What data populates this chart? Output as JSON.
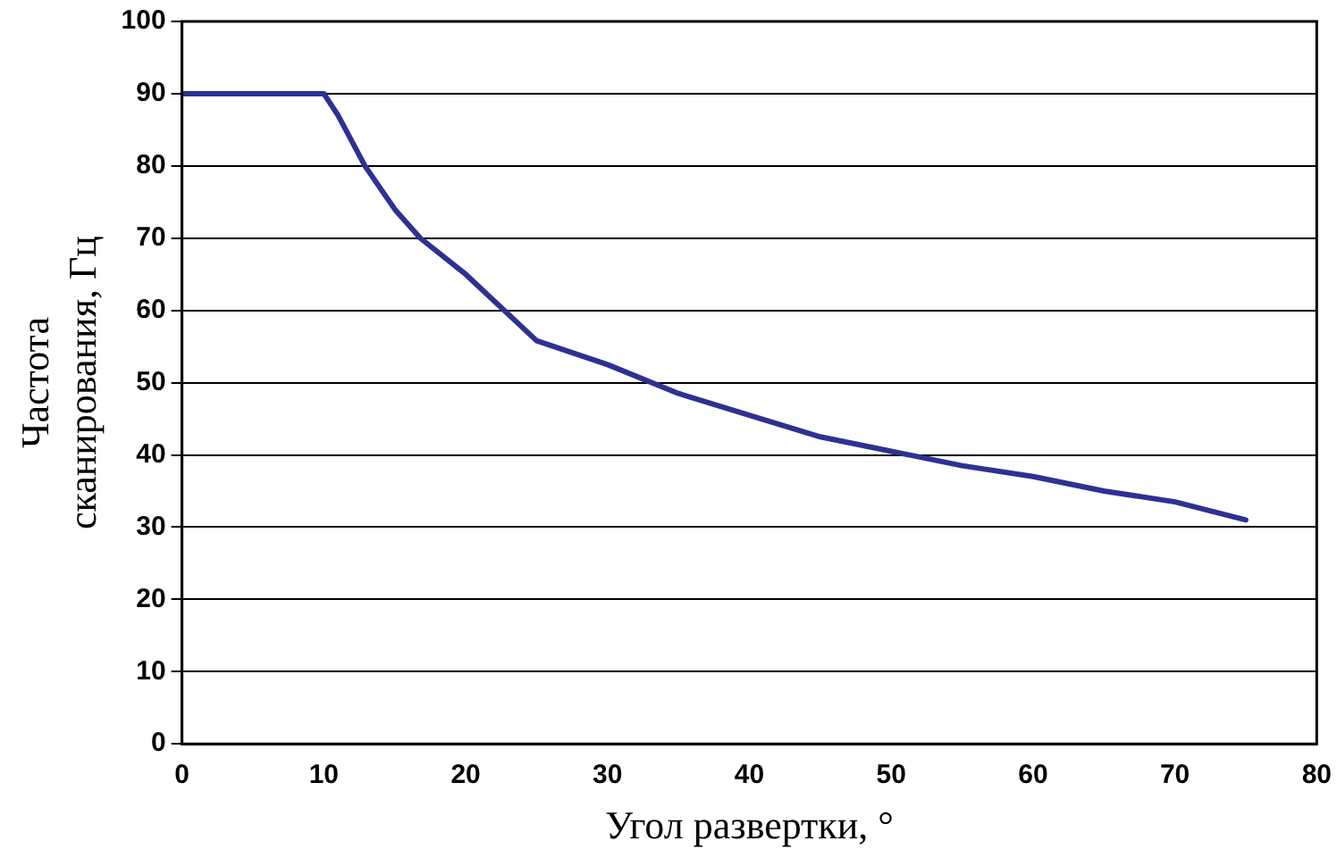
{
  "chart_data": {
    "type": "line",
    "xlabel": "Угол развертки, °",
    "ylabel": "Частота сканирования, Гц",
    "x": [
      0,
      10,
      11,
      12.9,
      15,
      16.8,
      20,
      25,
      30,
      35,
      40,
      45,
      50,
      55,
      60,
      65,
      70,
      75
    ],
    "series": [
      {
        "color": "#2e3192",
        "values": [
          90,
          90,
          87,
          80,
          74,
          70,
          65,
          55.8,
          52.5,
          48.5,
          45.5,
          42.5,
          40.5,
          38.5,
          37,
          35,
          33.5,
          31
        ]
      }
    ],
    "xlim": [
      0,
      80
    ],
    "xticks": [
      0,
      10,
      20,
      30,
      40,
      50,
      60,
      70,
      80
    ],
    "ylim": [
      0,
      100
    ],
    "yticks": [
      0,
      10,
      20,
      30,
      40,
      50,
      60,
      70,
      80,
      90,
      100
    ],
    "grid": "y",
    "legend": false,
    "marker": "none",
    "line_style": "solid"
  }
}
